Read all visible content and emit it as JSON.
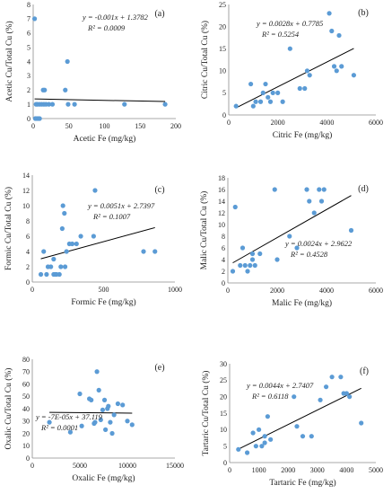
{
  "chart_data": [
    {
      "type": "scatter",
      "panel_label": "(a)",
      "xlabel": "Acetic Fe (mg/kg)",
      "ylabel": "Acetic Cu/Total Cu (%)",
      "xlim": [
        0,
        200
      ],
      "ylim": [
        0,
        8
      ],
      "xticks": [
        "0",
        "50",
        "100",
        "150",
        "200"
      ],
      "yticks": [
        "0",
        "1",
        "2",
        "3",
        "4",
        "5",
        "6",
        "7",
        "8"
      ],
      "equation": "y = -0.001x + 1.3782",
      "r2": "R² = 0.0009",
      "trendline": {
        "slope": -0.001,
        "intercept": 1.3782
      },
      "marker_color": "#5b9bd5",
      "points": [
        [
          2,
          7
        ],
        [
          3,
          0
        ],
        [
          5,
          0
        ],
        [
          7,
          0
        ],
        [
          9,
          0
        ],
        [
          4,
          1
        ],
        [
          6,
          1
        ],
        [
          9,
          1
        ],
        [
          12,
          1
        ],
        [
          15,
          1
        ],
        [
          18,
          1
        ],
        [
          22,
          1
        ],
        [
          27,
          1
        ],
        [
          14,
          2
        ],
        [
          16,
          2
        ],
        [
          45,
          2
        ],
        [
          48,
          4
        ],
        [
          49,
          1
        ],
        [
          58,
          1
        ],
        [
          128,
          1
        ],
        [
          185,
          1
        ]
      ]
    },
    {
      "type": "scatter",
      "panel_label": "(b)",
      "xlabel": "Citric Fe (mg/kg)",
      "ylabel": "Citric Cu/Total Cu (%)",
      "xlim": [
        0,
        6000
      ],
      "ylim": [
        0,
        25
      ],
      "xticks": [
        "0",
        "2000",
        "4000",
        "6000"
      ],
      "yticks": [
        "0",
        "5",
        "10",
        "15",
        "20",
        "25"
      ],
      "equation": "y = 0.0028x + 0.7785",
      "r2": "R² = 0.5254",
      "trendline": {
        "slope": 0.0028,
        "intercept": 0.7785
      },
      "marker_color": "#5b9bd5",
      "points": [
        [
          300,
          2
        ],
        [
          900,
          7
        ],
        [
          1000,
          2
        ],
        [
          1100,
          3
        ],
        [
          1300,
          3
        ],
        [
          1400,
          5
        ],
        [
          1500,
          7
        ],
        [
          1600,
          4
        ],
        [
          1700,
          3
        ],
        [
          1800,
          5
        ],
        [
          2000,
          5
        ],
        [
          2200,
          3
        ],
        [
          2500,
          15
        ],
        [
          2900,
          6
        ],
        [
          3100,
          6
        ],
        [
          3200,
          10
        ],
        [
          3300,
          9
        ],
        [
          4100,
          23
        ],
        [
          4200,
          19
        ],
        [
          4300,
          11
        ],
        [
          4400,
          10
        ],
        [
          4500,
          18
        ],
        [
          4600,
          11
        ],
        [
          5100,
          9
        ]
      ]
    },
    {
      "type": "scatter",
      "panel_label": "(c)",
      "xlabel": "Formic Fe (mg/kg)",
      "ylabel": "Formic Cu/Total Cu (%)",
      "xlim": [
        0,
        1000
      ],
      "ylim": [
        0,
        14
      ],
      "xticks": [
        "0",
        "500",
        "1000"
      ],
      "yticks": [
        "0",
        "2",
        "4",
        "6",
        "8",
        "10",
        "12",
        "14"
      ],
      "equation": "y = 0.0051x + 2.7397",
      "r2": "R² = 0.1007",
      "trendline": {
        "slope": 0.0051,
        "intercept": 2.7397
      },
      "marker_color": "#5b9bd5",
      "points": [
        [
          60,
          1
        ],
        [
          80,
          4
        ],
        [
          100,
          1
        ],
        [
          110,
          2
        ],
        [
          130,
          2
        ],
        [
          150,
          1
        ],
        [
          150,
          3
        ],
        [
          160,
          1
        ],
        [
          170,
          1
        ],
        [
          190,
          1
        ],
        [
          200,
          2
        ],
        [
          210,
          7
        ],
        [
          215,
          10
        ],
        [
          225,
          9
        ],
        [
          230,
          2
        ],
        [
          240,
          4
        ],
        [
          260,
          5
        ],
        [
          280,
          5
        ],
        [
          310,
          5
        ],
        [
          340,
          6
        ],
        [
          430,
          6
        ],
        [
          440,
          12
        ],
        [
          780,
          4
        ],
        [
          860,
          4
        ]
      ]
    },
    {
      "type": "scatter",
      "panel_label": "(d)",
      "xlabel": "Malic Fe (mg/kg)",
      "ylabel": "Malic Cu/Total Cu (%)",
      "xlim": [
        0,
        6000
      ],
      "ylim": [
        0,
        18
      ],
      "xticks": [
        "0",
        "2000",
        "4000",
        "6000"
      ],
      "yticks": [
        "0",
        "2",
        "4",
        "6",
        "8",
        "10",
        "12",
        "14",
        "16",
        "18"
      ],
      "equation": "y = 0.0024x + 2.9622",
      "r2": "R² = 0.4528",
      "trendline": {
        "slope": 0.0024,
        "intercept": 2.9622
      },
      "marker_color": "#5b9bd5",
      "points": [
        [
          200,
          2
        ],
        [
          300,
          13
        ],
        [
          500,
          3
        ],
        [
          600,
          6
        ],
        [
          700,
          3
        ],
        [
          800,
          2
        ],
        [
          900,
          3
        ],
        [
          1000,
          5
        ],
        [
          1000,
          4
        ],
        [
          1100,
          3
        ],
        [
          1300,
          5
        ],
        [
          1900,
          16
        ],
        [
          2000,
          4
        ],
        [
          2500,
          8
        ],
        [
          2800,
          6
        ],
        [
          3200,
          16
        ],
        [
          3300,
          14
        ],
        [
          3500,
          12
        ],
        [
          3700,
          16
        ],
        [
          3800,
          14
        ],
        [
          3900,
          16
        ],
        [
          5000,
          9
        ]
      ]
    },
    {
      "type": "scatter",
      "panel_label": "(e)",
      "xlabel": "Oxalic Fe (mg/kg)",
      "ylabel": "Oxalic Cu/Total Cu (%)",
      "xlim": [
        0,
        15000
      ],
      "ylim": [
        0,
        80
      ],
      "xticks": [
        "0",
        "5000",
        "10000",
        "15000"
      ],
      "yticks": [
        "0",
        "10",
        "20",
        "30",
        "40",
        "50",
        "60",
        "70",
        "80"
      ],
      "equation": "y = -7E-05x + 37.119",
      "r2": "R² = 0.0001",
      "trendline": {
        "slope": -7e-05,
        "intercept": 37.119
      },
      "marker_color": "#5b9bd5",
      "points": [
        [
          1800,
          29
        ],
        [
          4000,
          21
        ],
        [
          5000,
          52
        ],
        [
          5200,
          26
        ],
        [
          6000,
          48
        ],
        [
          6200,
          47
        ],
        [
          6500,
          28
        ],
        [
          6600,
          29
        ],
        [
          6800,
          70
        ],
        [
          7000,
          55
        ],
        [
          7200,
          31
        ],
        [
          7400,
          39
        ],
        [
          7600,
          47
        ],
        [
          7700,
          23
        ],
        [
          7900,
          40
        ],
        [
          8000,
          42
        ],
        [
          8200,
          29
        ],
        [
          8400,
          20
        ],
        [
          8600,
          35
        ],
        [
          9000,
          44
        ],
        [
          9500,
          43
        ],
        [
          10000,
          30
        ],
        [
          10500,
          27
        ]
      ]
    },
    {
      "type": "scatter",
      "panel_label": "(f)",
      "xlabel": "Tartaric Fe (mg/kg)",
      "ylabel": "Tartaric Cu/Total Cu (%)",
      "xlim": [
        0,
        5000
      ],
      "ylim": [
        0,
        30
      ],
      "xticks": [
        "0",
        "1000",
        "2000",
        "3000",
        "4000",
        "5000"
      ],
      "yticks": [
        "0",
        "5",
        "10",
        "15",
        "20",
        "25",
        "30"
      ],
      "equation": "y = 0.0044x + 2.7407",
      "r2": "R² = 0.6118",
      "trendline": {
        "slope": 0.0044,
        "intercept": 2.7407
      },
      "marker_color": "#5b9bd5",
      "points": [
        [
          300,
          4
        ],
        [
          600,
          3
        ],
        [
          800,
          9
        ],
        [
          900,
          5
        ],
        [
          1000,
          10
        ],
        [
          1100,
          5
        ],
        [
          1200,
          8
        ],
        [
          1200,
          6
        ],
        [
          1300,
          14
        ],
        [
          1400,
          7
        ],
        [
          2200,
          20
        ],
        [
          2300,
          11
        ],
        [
          2500,
          8
        ],
        [
          2800,
          8
        ],
        [
          3100,
          19
        ],
        [
          3300,
          23
        ],
        [
          3500,
          26
        ],
        [
          3800,
          26
        ],
        [
          3900,
          21
        ],
        [
          4000,
          21
        ],
        [
          4100,
          20
        ],
        [
          4500,
          12
        ]
      ]
    }
  ]
}
